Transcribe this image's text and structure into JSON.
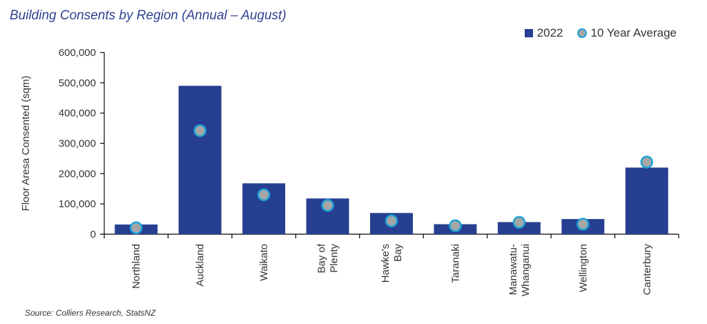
{
  "chart_data": {
    "type": "bar",
    "title": "Building Consents by Region (Annual – August)",
    "ylabel": "Floor Aresa Consented (sqm)",
    "xlabel": "",
    "ylim": [
      0,
      600000
    ],
    "yticks": [
      0,
      100000,
      200000,
      300000,
      400000,
      500000,
      600000
    ],
    "ytick_labels": [
      "0",
      "100,000",
      "200,000",
      "300,000",
      "400,000",
      "500,000",
      "600,000"
    ],
    "categories": [
      [
        "Northland"
      ],
      [
        "Auckland"
      ],
      [
        "Waikato"
      ],
      [
        "Bay of",
        "Plenty"
      ],
      [
        "Hawke's",
        "Bay"
      ],
      [
        "Taranaki"
      ],
      [
        "Manawatu-",
        "Whanganui"
      ],
      [
        "Wellington"
      ],
      [
        "Canterbury"
      ]
    ],
    "series": [
      {
        "name": "2022",
        "kind": "bar",
        "values": [
          32000,
          490000,
          168000,
          118000,
          70000,
          33000,
          40000,
          50000,
          220000
        ]
      },
      {
        "name": "10 Year Average",
        "kind": "marker",
        "values": [
          21000,
          342000,
          130000,
          95000,
          44000,
          28000,
          39000,
          33000,
          238000
        ]
      }
    ],
    "legend_position": "top-right",
    "colors": {
      "bar": "#263f91",
      "marker_fill": "#a6a6a6",
      "marker_edge": "#1aa3d8",
      "axis": "#000000"
    },
    "grid": false
  },
  "source": "Source: Colliers Research, StatsNZ"
}
